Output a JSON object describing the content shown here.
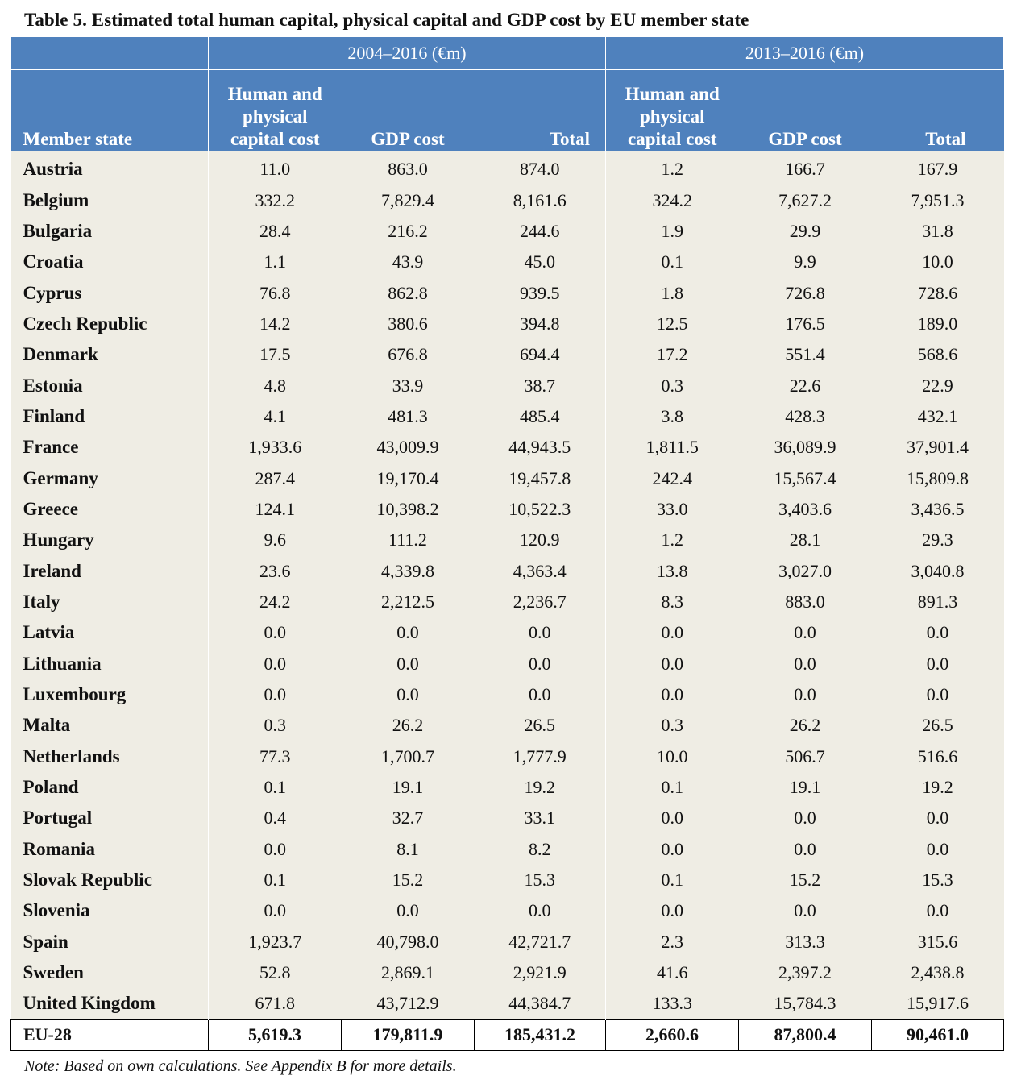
{
  "title": "Table 5. Estimated total human capital, physical capital and GDP cost by EU member state",
  "periods": [
    "2004–2016 (€m)",
    "2013–2016 (€m)"
  ],
  "columns": {
    "member_state": "Member state",
    "hp_cost_lines": [
      "Human and",
      "physical",
      "capital cost"
    ],
    "gdp_cost": "GDP cost",
    "total": "Total"
  },
  "rows": [
    {
      "name": "Austria",
      "v": [
        "11.0",
        "863.0",
        "874.0",
        "1.2",
        "166.7",
        "167.9"
      ]
    },
    {
      "name": "Belgium",
      "v": [
        "332.2",
        "7,829.4",
        "8,161.6",
        "324.2",
        "7,627.2",
        "7,951.3"
      ]
    },
    {
      "name": "Bulgaria",
      "v": [
        "28.4",
        "216.2",
        "244.6",
        "1.9",
        "29.9",
        "31.8"
      ]
    },
    {
      "name": "Croatia",
      "v": [
        "1.1",
        "43.9",
        "45.0",
        "0.1",
        "9.9",
        "10.0"
      ]
    },
    {
      "name": "Cyprus",
      "v": [
        "76.8",
        "862.8",
        "939.5",
        "1.8",
        "726.8",
        "728.6"
      ]
    },
    {
      "name": "Czech Republic",
      "v": [
        "14.2",
        "380.6",
        "394.8",
        "12.5",
        "176.5",
        "189.0"
      ]
    },
    {
      "name": "Denmark",
      "v": [
        "17.5",
        "676.8",
        "694.4",
        "17.2",
        "551.4",
        "568.6"
      ]
    },
    {
      "name": "Estonia",
      "v": [
        "4.8",
        "33.9",
        "38.7",
        "0.3",
        "22.6",
        "22.9"
      ]
    },
    {
      "name": "Finland",
      "v": [
        "4.1",
        "481.3",
        "485.4",
        "3.8",
        "428.3",
        "432.1"
      ]
    },
    {
      "name": "France",
      "v": [
        "1,933.6",
        "43,009.9",
        "44,943.5",
        "1,811.5",
        "36,089.9",
        "37,901.4"
      ]
    },
    {
      "name": "Germany",
      "v": [
        "287.4",
        "19,170.4",
        "19,457.8",
        "242.4",
        "15,567.4",
        "15,809.8"
      ]
    },
    {
      "name": "Greece",
      "v": [
        "124.1",
        "10,398.2",
        "10,522.3",
        "33.0",
        "3,403.6",
        "3,436.5"
      ]
    },
    {
      "name": "Hungary",
      "v": [
        "9.6",
        "111.2",
        "120.9",
        "1.2",
        "28.1",
        "29.3"
      ]
    },
    {
      "name": "Ireland",
      "v": [
        "23.6",
        "4,339.8",
        "4,363.4",
        "13.8",
        "3,027.0",
        "3,040.8"
      ]
    },
    {
      "name": "Italy",
      "v": [
        "24.2",
        "2,212.5",
        "2,236.7",
        "8.3",
        "883.0",
        "891.3"
      ]
    },
    {
      "name": "Latvia",
      "v": [
        "0.0",
        "0.0",
        "0.0",
        "0.0",
        "0.0",
        "0.0"
      ]
    },
    {
      "name": "Lithuania",
      "v": [
        "0.0",
        "0.0",
        "0.0",
        "0.0",
        "0.0",
        "0.0"
      ]
    },
    {
      "name": "Luxembourg",
      "v": [
        "0.0",
        "0.0",
        "0.0",
        "0.0",
        "0.0",
        "0.0"
      ]
    },
    {
      "name": "Malta",
      "v": [
        "0.3",
        "26.2",
        "26.5",
        "0.3",
        "26.2",
        "26.5"
      ]
    },
    {
      "name": "Netherlands",
      "v": [
        "77.3",
        "1,700.7",
        "1,777.9",
        "10.0",
        "506.7",
        "516.6"
      ]
    },
    {
      "name": "Poland",
      "v": [
        "0.1",
        "19.1",
        "19.2",
        "0.1",
        "19.1",
        "19.2"
      ]
    },
    {
      "name": "Portugal",
      "v": [
        "0.4",
        "32.7",
        "33.1",
        "0.0",
        "0.0",
        "0.0"
      ]
    },
    {
      "name": "Romania",
      "v": [
        "0.0",
        "8.1",
        "8.2",
        "0.0",
        "0.0",
        "0.0"
      ]
    },
    {
      "name": "Slovak Republic",
      "v": [
        "0.1",
        "15.2",
        "15.3",
        "0.1",
        "15.2",
        "15.3"
      ]
    },
    {
      "name": "Slovenia",
      "v": [
        "0.0",
        "0.0",
        "0.0",
        "0.0",
        "0.0",
        "0.0"
      ]
    },
    {
      "name": "Spain",
      "v": [
        "1,923.7",
        "40,798.0",
        "42,721.7",
        "2.3",
        "313.3",
        "315.6"
      ]
    },
    {
      "name": "Sweden",
      "v": [
        "52.8",
        "2,869.1",
        "2,921.9",
        "41.6",
        "2,397.2",
        "2,438.8"
      ]
    },
    {
      "name": "United Kingdom",
      "v": [
        "671.8",
        "43,712.9",
        "44,384.7",
        "133.3",
        "15,784.3",
        "15,917.6"
      ]
    }
  ],
  "total_row": {
    "name": "EU-28",
    "v": [
      "5,619.3",
      "179,811.9",
      "185,431.2",
      "2,660.6",
      "87,800.4",
      "90,461.0"
    ]
  },
  "note": "Note: Based on own calculations. See Appendix B for more details.",
  "colors": {
    "header_bg": "#4f81bd",
    "body_bg": "#efede4"
  }
}
